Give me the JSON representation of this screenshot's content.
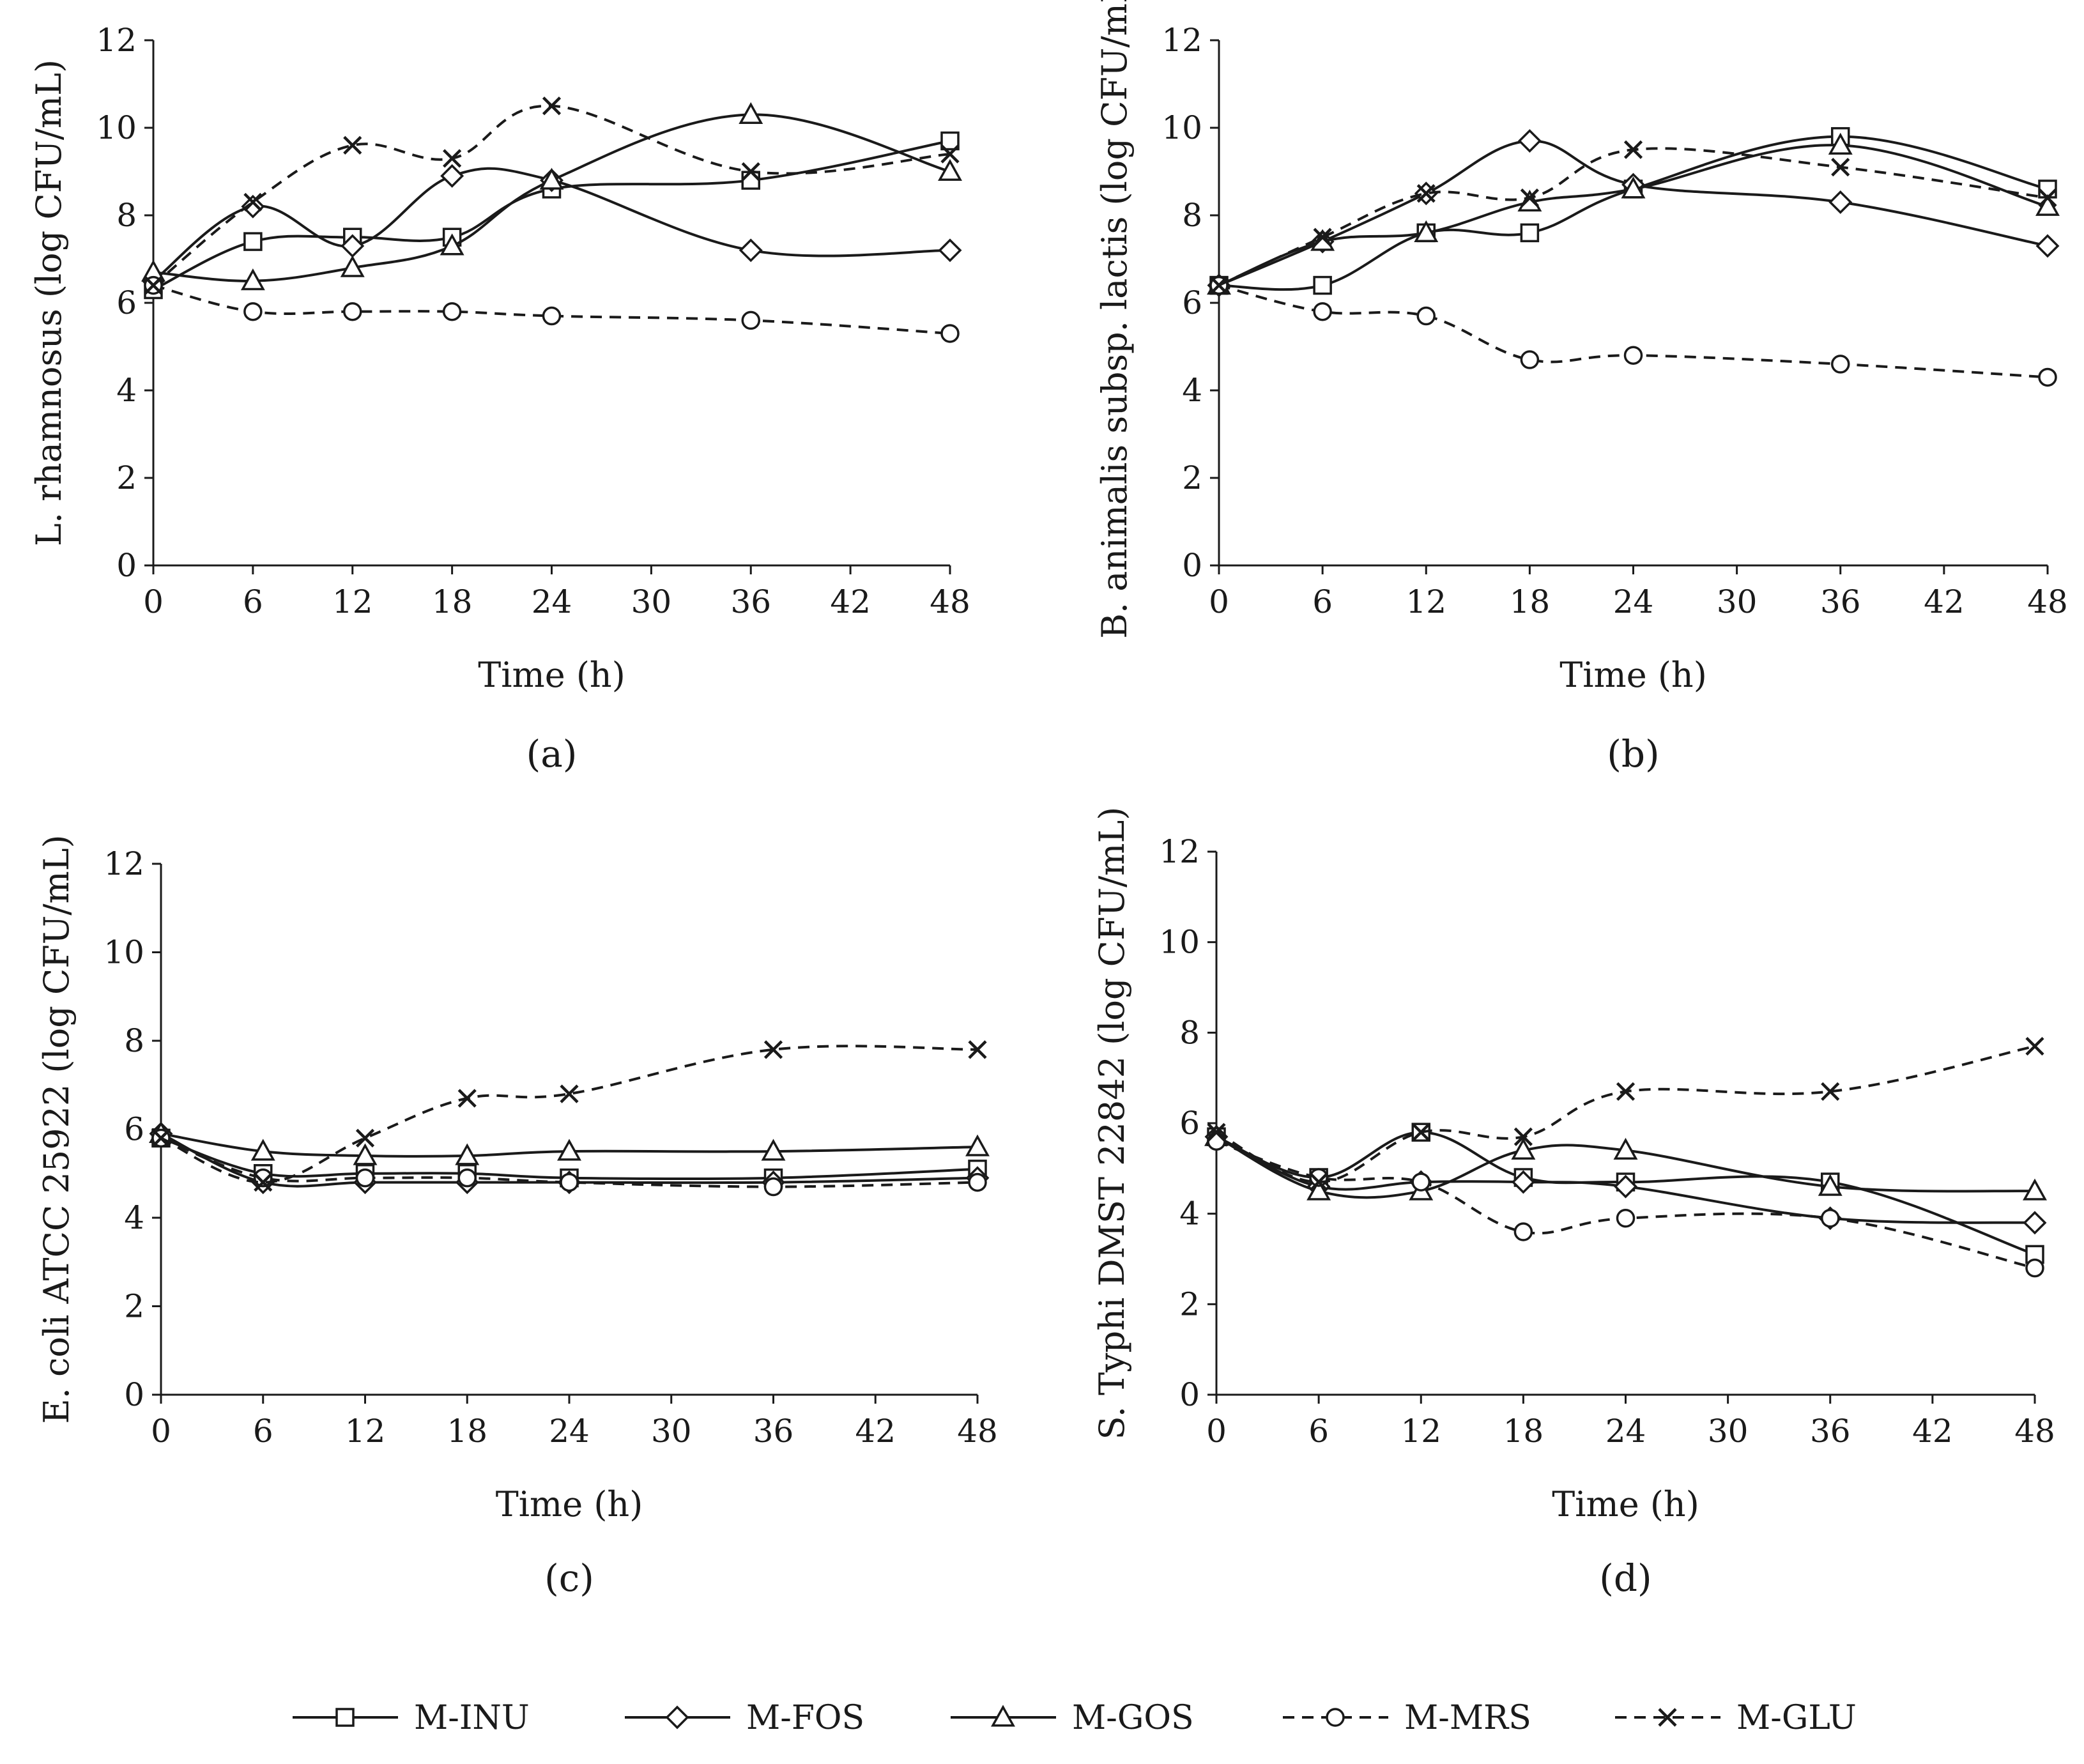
{
  "legend": [
    {
      "name": "M-INU",
      "marker": "square",
      "dash": false
    },
    {
      "name": "M-FOS",
      "marker": "diamond",
      "dash": false
    },
    {
      "name": "M-GOS",
      "marker": "triangle",
      "dash": false
    },
    {
      "name": "M-MRS",
      "marker": "circle",
      "dash": true
    },
    {
      "name": "M-GLU",
      "marker": "x",
      "dash": true
    }
  ],
  "chart_data": [
    {
      "type": "line",
      "panel": "(a)",
      "ylabel": "L. rhamnosus (log CFU/mL)",
      "xlabel": "Time (h)",
      "xlim": [
        0,
        48
      ],
      "ylim": [
        0,
        12
      ],
      "xticks": [
        0,
        6,
        12,
        18,
        24,
        30,
        36,
        42,
        48
      ],
      "yticks": [
        0,
        2,
        4,
        6,
        8,
        10,
        12
      ],
      "x": [
        0,
        6,
        12,
        18,
        24,
        36,
        48
      ],
      "grid": false,
      "series": [
        {
          "name": "M-INU",
          "values": [
            6.3,
            7.4,
            7.5,
            7.5,
            8.6,
            8.8,
            9.7
          ]
        },
        {
          "name": "M-FOS",
          "values": [
            6.5,
            8.2,
            7.3,
            8.9,
            8.8,
            7.2,
            7.2
          ]
        },
        {
          "name": "M-GOS",
          "values": [
            6.7,
            6.5,
            6.8,
            7.3,
            8.8,
            10.3,
            9.0
          ]
        },
        {
          "name": "M-MRS",
          "values": [
            6.4,
            5.8,
            5.8,
            5.8,
            5.7,
            5.6,
            5.3
          ]
        },
        {
          "name": "M-GLU",
          "values": [
            6.4,
            8.3,
            9.6,
            9.3,
            10.5,
            9.0,
            9.4
          ]
        }
      ]
    },
    {
      "type": "line",
      "panel": "(b)",
      "ylabel": "B. animalis subsp. lactis (log CFU/mL)",
      "xlabel": "Time (h)",
      "xlim": [
        0,
        48
      ],
      "ylim": [
        0,
        12
      ],
      "xticks": [
        0,
        6,
        12,
        18,
        24,
        30,
        36,
        42,
        48
      ],
      "yticks": [
        0,
        2,
        4,
        6,
        8,
        10,
        12
      ],
      "x": [
        0,
        6,
        12,
        18,
        24,
        36,
        48
      ],
      "grid": false,
      "series": [
        {
          "name": "M-INU",
          "values": [
            6.4,
            6.4,
            7.6,
            7.6,
            8.6,
            9.8,
            8.6
          ]
        },
        {
          "name": "M-FOS",
          "values": [
            6.4,
            7.4,
            8.5,
            9.7,
            8.7,
            8.3,
            7.3
          ]
        },
        {
          "name": "M-GOS",
          "values": [
            6.4,
            7.4,
            7.6,
            8.3,
            8.6,
            9.6,
            8.2
          ]
        },
        {
          "name": "M-MRS",
          "values": [
            6.4,
            5.8,
            5.7,
            4.7,
            4.8,
            4.6,
            4.3
          ]
        },
        {
          "name": "M-GLU",
          "values": [
            6.4,
            7.5,
            8.5,
            8.4,
            9.5,
            9.1,
            8.4
          ]
        }
      ]
    },
    {
      "type": "line",
      "panel": "(c)",
      "ylabel": "E. coli ATCC 25922 (log CFU/mL)",
      "xlabel": "Time (h)",
      "xlim": [
        0,
        48
      ],
      "ylim": [
        0,
        12
      ],
      "xticks": [
        0,
        6,
        12,
        18,
        24,
        30,
        36,
        42,
        48
      ],
      "yticks": [
        0,
        2,
        4,
        6,
        8,
        10,
        12
      ],
      "x": [
        0,
        6,
        12,
        18,
        24,
        36,
        48
      ],
      "grid": false,
      "series": [
        {
          "name": "M-INU",
          "values": [
            5.8,
            5.0,
            5.0,
            5.0,
            4.9,
            4.9,
            5.1
          ]
        },
        {
          "name": "M-FOS",
          "values": [
            5.9,
            4.8,
            4.8,
            4.8,
            4.8,
            4.8,
            4.9
          ]
        },
        {
          "name": "M-GOS",
          "values": [
            5.9,
            5.5,
            5.4,
            5.4,
            5.5,
            5.5,
            5.6
          ]
        },
        {
          "name": "M-MRS",
          "values": [
            5.8,
            4.9,
            4.9,
            4.9,
            4.8,
            4.7,
            4.8
          ]
        },
        {
          "name": "M-GLU",
          "values": [
            5.8,
            4.8,
            5.8,
            6.7,
            6.8,
            7.8,
            7.8
          ]
        }
      ]
    },
    {
      "type": "line",
      "panel": "(d)",
      "ylabel": "S. Typhi DMST 22842 (log CFU/mL)",
      "xlabel": "Time (h)",
      "xlim": [
        0,
        48
      ],
      "ylim": [
        0,
        12
      ],
      "xticks": [
        0,
        6,
        12,
        18,
        24,
        30,
        36,
        42,
        48
      ],
      "yticks": [
        0,
        2,
        4,
        6,
        8,
        10,
        12
      ],
      "x": [
        0,
        6,
        12,
        18,
        24,
        36,
        48
      ],
      "grid": false,
      "series": [
        {
          "name": "M-INU",
          "values": [
            5.7,
            4.8,
            5.8,
            4.8,
            4.7,
            4.7,
            3.1
          ]
        },
        {
          "name": "M-FOS",
          "values": [
            5.7,
            4.6,
            4.7,
            4.7,
            4.6,
            3.9,
            3.8
          ]
        },
        {
          "name": "M-GOS",
          "values": [
            5.7,
            4.5,
            4.5,
            5.4,
            5.4,
            4.6,
            4.5
          ]
        },
        {
          "name": "M-MRS",
          "values": [
            5.6,
            4.8,
            4.7,
            3.6,
            3.9,
            3.9,
            2.8
          ]
        },
        {
          "name": "M-GLU",
          "values": [
            5.8,
            4.7,
            5.8,
            5.7,
            6.7,
            6.7,
            7.7
          ]
        }
      ]
    }
  ]
}
